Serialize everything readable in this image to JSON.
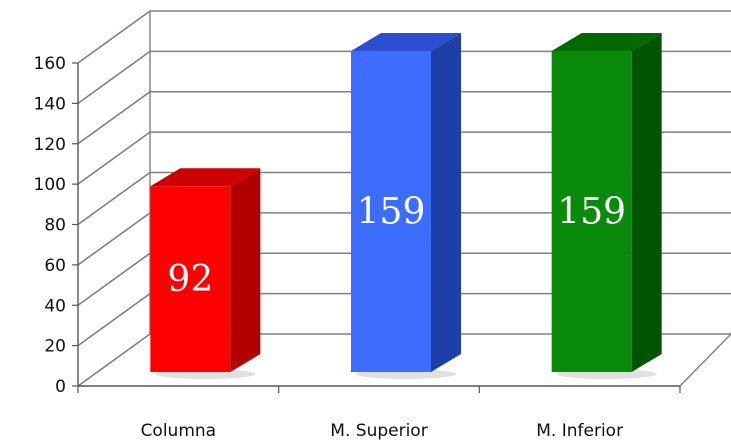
{
  "chart_data": {
    "type": "bar",
    "title": "",
    "xlabel": "",
    "ylabel": "",
    "categories": [
      "Columna",
      "M. Superior",
      "M. Inferior"
    ],
    "values": [
      92,
      159,
      159
    ],
    "ylim": [
      0,
      160
    ],
    "yticks": [
      0,
      20,
      40,
      60,
      80,
      100,
      120,
      140,
      160
    ],
    "grid": true,
    "three_d": true,
    "legend": "none",
    "colors": {
      "bars": [
        "#ff0000",
        "#3d6dff",
        "#0a8a0a"
      ],
      "bar_sides": [
        "#b00000",
        "#1f3fa8",
        "#005400"
      ],
      "bar_tops": [
        "#cc0000",
        "#2b4fd0",
        "#006a00"
      ],
      "grid": "#808080",
      "data_label": "#ffffff"
    }
  }
}
